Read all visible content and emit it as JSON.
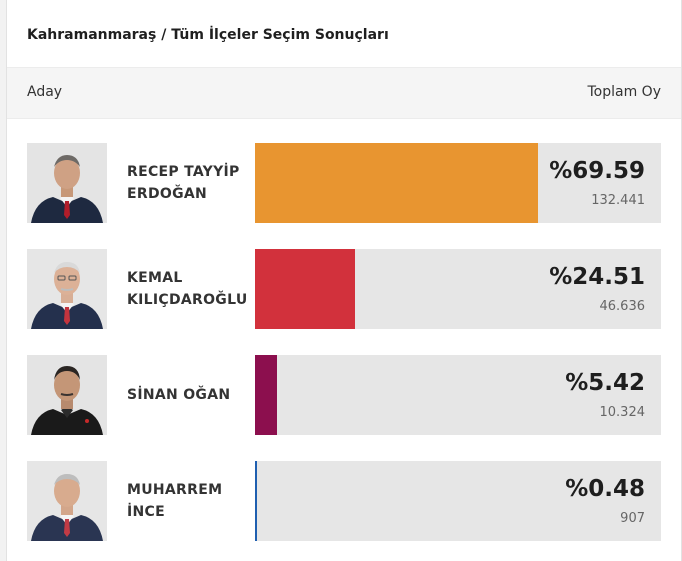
{
  "header": {
    "title": "Kahramanmaraş / Tüm İlçeler Seçim Sonuçları"
  },
  "columns": {
    "candidate": "Aday",
    "total": "Toplam Oy"
  },
  "candidates": [
    {
      "line1": "RECEP TAYYİP",
      "line2": "ERDOĞAN",
      "percent_label": "%69.59",
      "percent": 69.59,
      "votes": "132.441",
      "color": "#e89530",
      "icon": "candidate-photo"
    },
    {
      "line1": "KEMAL",
      "line2": "KILIÇDAROĞLU",
      "percent_label": "%24.51",
      "percent": 24.51,
      "votes": "46.636",
      "color": "#d2313c",
      "icon": "candidate-photo"
    },
    {
      "line1": "SİNAN OĞAN",
      "line2": "",
      "percent_label": "%5.42",
      "percent": 5.42,
      "votes": "10.324",
      "color": "#8c0f4e",
      "icon": "candidate-photo"
    },
    {
      "line1": "MUHARREM",
      "line2": "İNCE",
      "percent_label": "%0.48",
      "percent": 0.48,
      "votes": "907",
      "color": "#1f5fb0",
      "icon": "candidate-photo"
    }
  ]
}
